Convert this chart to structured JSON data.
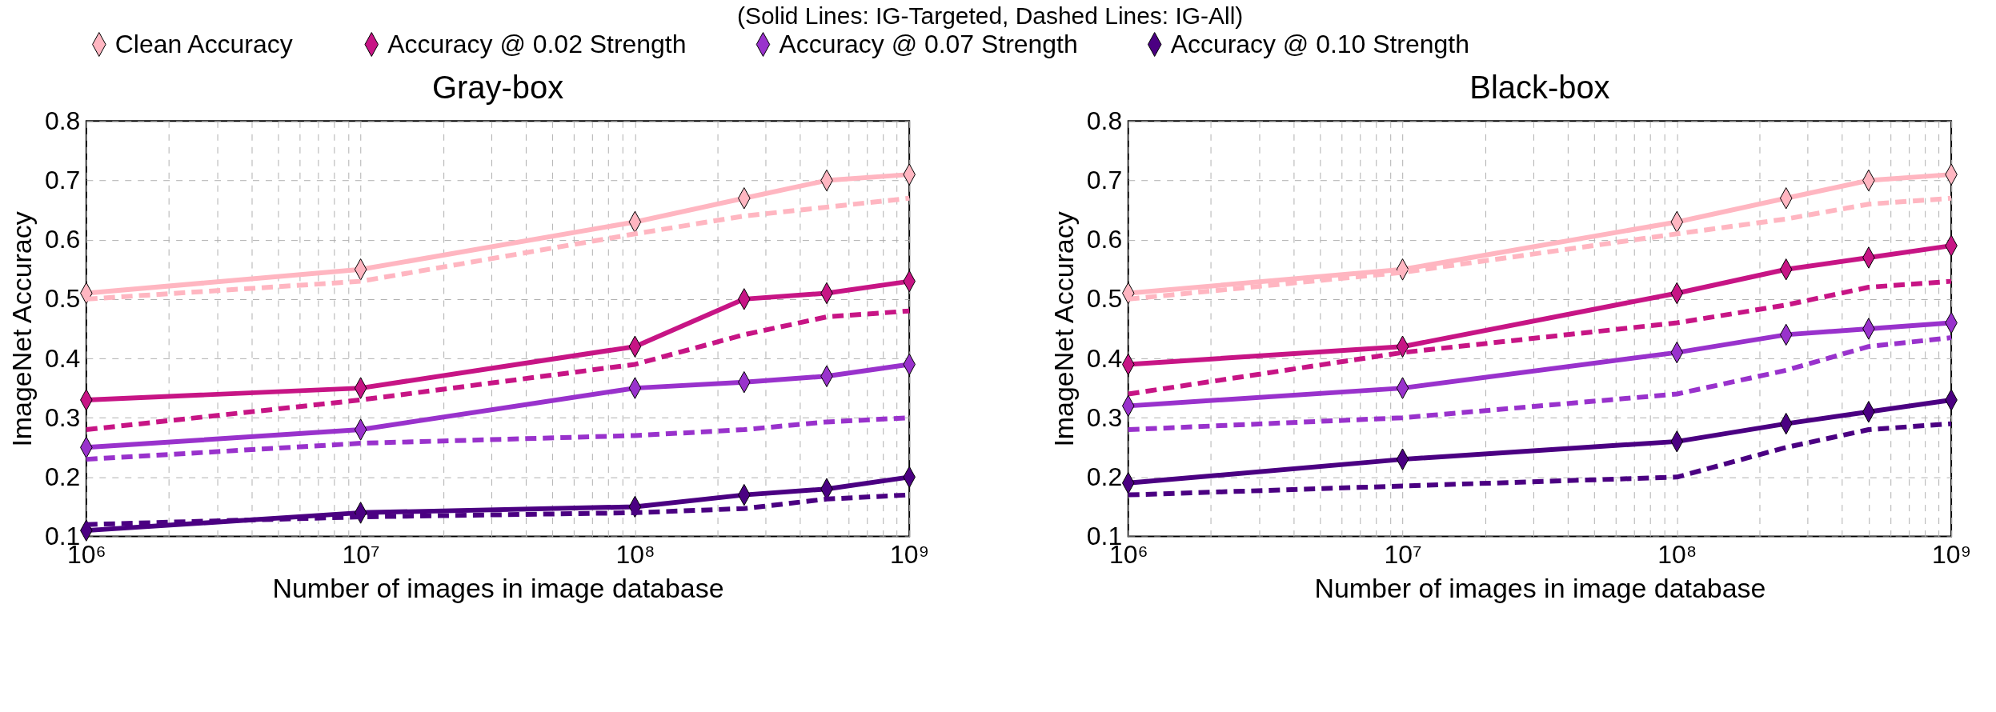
{
  "chart_data": [
    {
      "type": "line",
      "title": "Gray-box",
      "subtitle": "(Solid Lines: IG-Targeted, Dashed Lines: IG-All)",
      "xlabel": "Number of images in image database",
      "ylabel": "ImageNet Accuracy",
      "log": "x",
      "grid": true,
      "legend": "top",
      "x": [
        1000000,
        10000000,
        100000000,
        250000000,
        500000000,
        1000000000
      ],
      "xlim": [
        1000000,
        1000000000
      ],
      "xticks": [
        {
          "value": 1000000,
          "label": "10⁶"
        },
        {
          "value": 10000000,
          "label": "10⁷"
        },
        {
          "value": 100000000,
          "label": "10⁸"
        },
        {
          "value": 1000000000,
          "label": "10⁹"
        }
      ],
      "ylim": [
        0.1,
        0.8
      ],
      "yticks": [
        0.1,
        0.2,
        0.3,
        0.4,
        0.5,
        0.6,
        0.7,
        0.8
      ],
      "series": [
        {
          "name": "Clean Accuracy",
          "color": "#ffb6c1",
          "line_style": "solid",
          "marker": "diamond",
          "values": [
            0.51,
            0.55,
            0.63,
            0.67,
            0.7,
            0.71
          ]
        },
        {
          "color": "#ffb6c1",
          "line_style": "dashed",
          "marker": "none",
          "values": [
            0.5,
            0.53,
            0.61,
            0.64,
            0.655,
            0.67
          ]
        },
        {
          "name": "Accuracy @ 0.02 Strength",
          "color": "#c71585",
          "line_style": "solid",
          "marker": "diamond",
          "values": [
            0.33,
            0.35,
            0.42,
            0.5,
            0.51,
            0.53
          ]
        },
        {
          "color": "#c71585",
          "line_style": "dashed",
          "marker": "none",
          "values": [
            0.28,
            0.33,
            0.39,
            0.44,
            0.47,
            0.48
          ]
        },
        {
          "name": "Accuracy @ 0.07 Strength",
          "color": "#9932cc",
          "line_style": "solid",
          "marker": "diamond",
          "values": [
            0.25,
            0.28,
            0.35,
            0.36,
            0.37,
            0.39
          ]
        },
        {
          "color": "#9932cc",
          "line_style": "dashed",
          "marker": "none",
          "values": [
            0.23,
            0.257,
            0.27,
            0.28,
            0.293,
            0.3
          ]
        },
        {
          "name": "Accuracy @ 0.10 Strength",
          "color": "#4b0082",
          "line_style": "solid",
          "marker": "diamond",
          "values": [
            0.11,
            0.14,
            0.15,
            0.17,
            0.18,
            0.2
          ]
        },
        {
          "color": "#4b0082",
          "line_style": "dashed",
          "marker": "none",
          "values": [
            0.12,
            0.133,
            0.14,
            0.147,
            0.163,
            0.17
          ]
        }
      ]
    },
    {
      "type": "line",
      "title": "Black-box",
      "xlabel": "Number of images in image database",
      "ylabel": "ImageNet Accuracy",
      "log": "x",
      "grid": true,
      "legend": "top",
      "x": [
        1000000,
        10000000,
        100000000,
        250000000,
        500000000,
        1000000000
      ],
      "xlim": [
        1000000,
        1000000000
      ],
      "xticks": [
        {
          "value": 1000000,
          "label": "10⁶"
        },
        {
          "value": 10000000,
          "label": "10⁷"
        },
        {
          "value": 100000000,
          "label": "10⁸"
        },
        {
          "value": 1000000000,
          "label": "10⁹"
        }
      ],
      "ylim": [
        0.1,
        0.8
      ],
      "yticks": [
        0.1,
        0.2,
        0.3,
        0.4,
        0.5,
        0.6,
        0.7,
        0.8
      ],
      "series": [
        {
          "name": "Clean Accuracy",
          "color": "#ffb6c1",
          "line_style": "solid",
          "marker": "diamond",
          "values": [
            0.51,
            0.55,
            0.63,
            0.67,
            0.7,
            0.71
          ]
        },
        {
          "color": "#ffb6c1",
          "line_style": "dashed",
          "marker": "none",
          "values": [
            0.5,
            0.545,
            0.61,
            0.635,
            0.66,
            0.67
          ]
        },
        {
          "name": "Accuracy @ 0.02 Strength",
          "color": "#c71585",
          "line_style": "solid",
          "marker": "diamond",
          "values": [
            0.39,
            0.42,
            0.51,
            0.55,
            0.57,
            0.59
          ]
        },
        {
          "color": "#c71585",
          "line_style": "dashed",
          "marker": "none",
          "values": [
            0.34,
            0.41,
            0.46,
            0.49,
            0.52,
            0.53
          ]
        },
        {
          "name": "Accuracy @ 0.07 Strength",
          "color": "#9932cc",
          "line_style": "solid",
          "marker": "diamond",
          "values": [
            0.32,
            0.35,
            0.41,
            0.44,
            0.45,
            0.46
          ]
        },
        {
          "color": "#9932cc",
          "line_style": "dashed",
          "marker": "none",
          "values": [
            0.28,
            0.3,
            0.34,
            0.38,
            0.42,
            0.435
          ]
        },
        {
          "name": "Accuracy @ 0.10 Strength",
          "color": "#4b0082",
          "line_style": "solid",
          "marker": "diamond",
          "values": [
            0.19,
            0.23,
            0.26,
            0.29,
            0.31,
            0.33
          ]
        },
        {
          "color": "#4b0082",
          "line_style": "dashed",
          "marker": "none",
          "values": [
            0.17,
            0.185,
            0.2,
            0.25,
            0.28,
            0.29
          ]
        }
      ]
    }
  ]
}
